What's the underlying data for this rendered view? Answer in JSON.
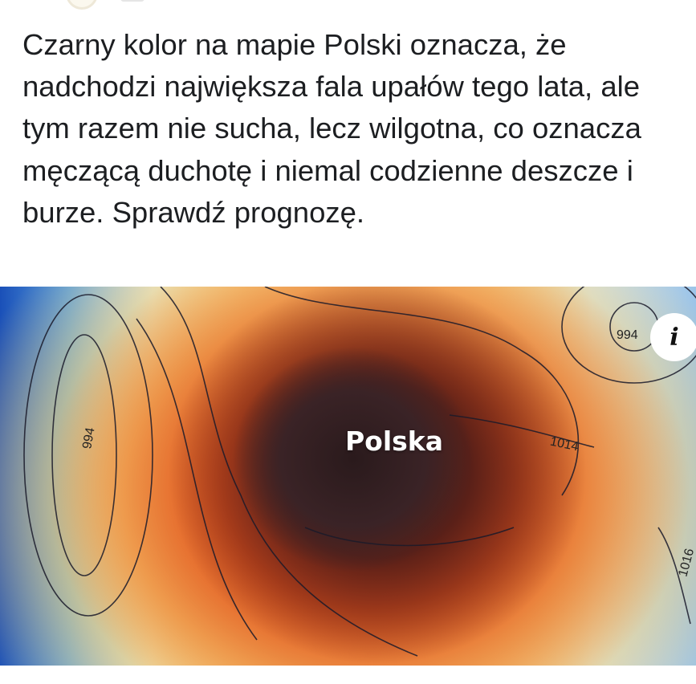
{
  "post": {
    "text": "Czarny kolor na mapie Polski oznacza, że nadchodzi największa fala upałów tego lata, ale tym razem nie sucha, lecz wilgotna, co oznacza męczącą duchotę i niemal codzienne deszcze i burze. Sprawdź prognozę."
  },
  "map": {
    "label": "Polska",
    "isobars": [
      "994",
      "994",
      "1014",
      "1016"
    ],
    "info_icon": "info-icon",
    "info_glyph": "i"
  }
}
